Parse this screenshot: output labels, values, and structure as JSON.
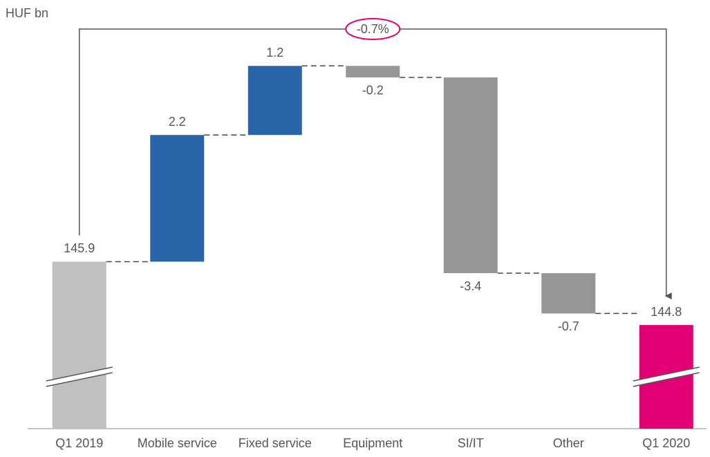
{
  "chart_data": {
    "type": "waterfall",
    "y_label": "HUF bn",
    "annotation": "-0.7%",
    "categories": [
      "Q1 2019",
      "Mobile service",
      "Fixed service",
      "Equipment",
      "SI/IT",
      "Other",
      "Q1 2020"
    ],
    "values": [
      145.9,
      2.2,
      1.2,
      -0.2,
      -3.4,
      -0.7,
      144.8
    ],
    "measure": [
      "total",
      "relative",
      "relative",
      "relative",
      "relative",
      "relative",
      "total"
    ],
    "colors": [
      "#c0c0c0",
      "#2a64a8",
      "#2a64a8",
      "#969696",
      "#969696",
      "#969696",
      "#e20074"
    ],
    "ylim": [
      143,
      150
    ],
    "axis_break": true
  }
}
